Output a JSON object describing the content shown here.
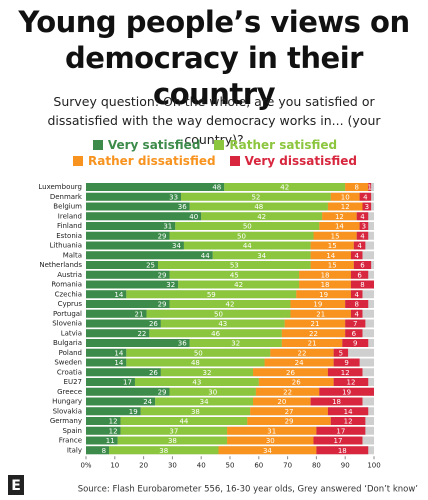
{
  "chart_data": {
    "type": "stacked-bar-horizontal",
    "title": "Young people’s views on democracy in their country",
    "subtitle": "Survey question: On the whole, are you satisfied or dissatisfied with the way democracy works in... (your country)?",
    "source": "Source: Flash Eurobarometer 556, 16-30 year olds, Grey answered ‘Don’t know’",
    "categories": [
      "Luxembourg",
      "Denmark",
      "Belgium",
      "Ireland",
      "Finland",
      "Estonia",
      "Lithuania",
      "Malta",
      "Netherlands",
      "Austria",
      "Romania",
      "Czechia",
      "Cyprus",
      "Portugal",
      "Slovenia",
      "Latvia",
      "Bulgaria",
      "Poland",
      "Sweden",
      "Croatia",
      "EU27",
      "Greece",
      "Hungary",
      "Slovakia",
      "Germany",
      "Spain",
      "France",
      "Italy"
    ],
    "series": [
      {
        "name": "Very satisfied",
        "color": "#3d8b4a",
        "values": [
          48,
          33,
          36,
          40,
          31,
          29,
          34,
          44,
          25,
          29,
          32,
          14,
          29,
          21,
          26,
          22,
          36,
          14,
          14,
          26,
          17,
          29,
          24,
          19,
          12,
          12,
          11,
          8
        ]
      },
      {
        "name": "Rather satisfied",
        "color": "#8cc63f",
        "values": [
          42,
          52,
          48,
          42,
          50,
          50,
          44,
          34,
          53,
          45,
          42,
          59,
          42,
          50,
          43,
          46,
          32,
          50,
          48,
          32,
          43,
          30,
          34,
          38,
          44,
          37,
          38,
          38
        ]
      },
      {
        "name": "Rather dissatisfied",
        "color": "#f7931e",
        "values": [
          8,
          10,
          12,
          12,
          14,
          15,
          15,
          14,
          15,
          18,
          18,
          19,
          19,
          21,
          21,
          22,
          21,
          22,
          24,
          26,
          26,
          22,
          20,
          27,
          29,
          31,
          30,
          34
        ]
      },
      {
        "name": "Very dissatisfied",
        "color": "#d7263d",
        "values": [
          1,
          4,
          3,
          4,
          3,
          4,
          4,
          4,
          6,
          6,
          8,
          4,
          8,
          4,
          7,
          6,
          9,
          5,
          9,
          12,
          12,
          19,
          18,
          14,
          12,
          17,
          17,
          18
        ]
      }
    ],
    "xlim": [
      0,
      100
    ],
    "xticks": [
      {
        "value": 0,
        "label": "0%"
      },
      10,
      20,
      30,
      40,
      50,
      60,
      70,
      80,
      90,
      100
    ]
  }
}
